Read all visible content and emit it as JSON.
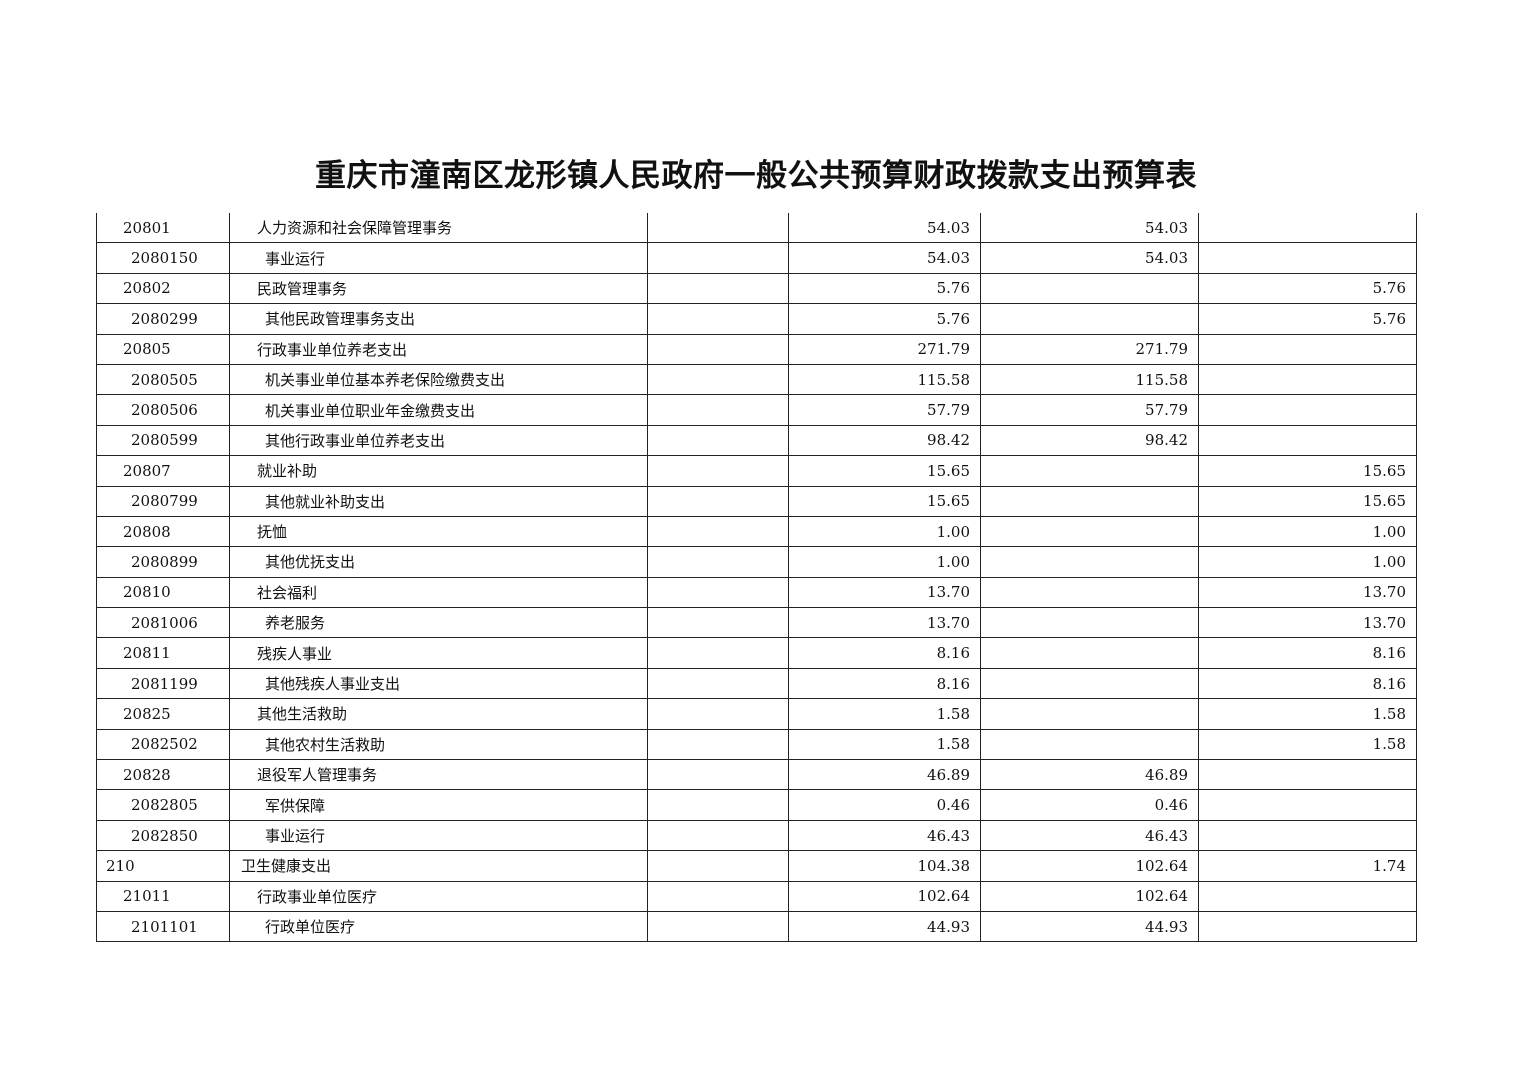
{
  "title": "重庆市潼南区龙形镇人民政府一般公共预算财政拨款支出预算表",
  "rows": [
    {
      "code": "20801",
      "name": "人力资源和社会保障管理事务",
      "level": 1,
      "c3": "",
      "total": "54.03",
      "basic": "54.03",
      "project": ""
    },
    {
      "code": "2080150",
      "name": "事业运行",
      "level": 2,
      "c3": "",
      "total": "54.03",
      "basic": "54.03",
      "project": ""
    },
    {
      "code": "20802",
      "name": "民政管理事务",
      "level": 1,
      "c3": "",
      "total": "5.76",
      "basic": "",
      "project": "5.76"
    },
    {
      "code": "2080299",
      "name": "其他民政管理事务支出",
      "level": 2,
      "c3": "",
      "total": "5.76",
      "basic": "",
      "project": "5.76"
    },
    {
      "code": "20805",
      "name": "行政事业单位养老支出",
      "level": 1,
      "c3": "",
      "total": "271.79",
      "basic": "271.79",
      "project": ""
    },
    {
      "code": "2080505",
      "name": "机关事业单位基本养老保险缴费支出",
      "level": 2,
      "c3": "",
      "total": "115.58",
      "basic": "115.58",
      "project": ""
    },
    {
      "code": "2080506",
      "name": "机关事业单位职业年金缴费支出",
      "level": 2,
      "c3": "",
      "total": "57.79",
      "basic": "57.79",
      "project": ""
    },
    {
      "code": "2080599",
      "name": "其他行政事业单位养老支出",
      "level": 2,
      "c3": "",
      "total": "98.42",
      "basic": "98.42",
      "project": ""
    },
    {
      "code": "20807",
      "name": "就业补助",
      "level": 1,
      "c3": "",
      "total": "15.65",
      "basic": "",
      "project": "15.65"
    },
    {
      "code": "2080799",
      "name": "其他就业补助支出",
      "level": 2,
      "c3": "",
      "total": "15.65",
      "basic": "",
      "project": "15.65"
    },
    {
      "code": "20808",
      "name": "抚恤",
      "level": 1,
      "c3": "",
      "total": "1.00",
      "basic": "",
      "project": "1.00"
    },
    {
      "code": "2080899",
      "name": "其他优抚支出",
      "level": 2,
      "c3": "",
      "total": "1.00",
      "basic": "",
      "project": "1.00"
    },
    {
      "code": "20810",
      "name": "社会福利",
      "level": 1,
      "c3": "",
      "total": "13.70",
      "basic": "",
      "project": "13.70"
    },
    {
      "code": "2081006",
      "name": "养老服务",
      "level": 2,
      "c3": "",
      "total": "13.70",
      "basic": "",
      "project": "13.70"
    },
    {
      "code": "20811",
      "name": "残疾人事业",
      "level": 1,
      "c3": "",
      "total": "8.16",
      "basic": "",
      "project": "8.16"
    },
    {
      "code": "2081199",
      "name": "其他残疾人事业支出",
      "level": 2,
      "c3": "",
      "total": "8.16",
      "basic": "",
      "project": "8.16"
    },
    {
      "code": "20825",
      "name": "其他生活救助",
      "level": 1,
      "c3": "",
      "total": "1.58",
      "basic": "",
      "project": "1.58"
    },
    {
      "code": "2082502",
      "name": "其他农村生活救助",
      "level": 2,
      "c3": "",
      "total": "1.58",
      "basic": "",
      "project": "1.58"
    },
    {
      "code": "20828",
      "name": "退役军人管理事务",
      "level": 1,
      "c3": "",
      "total": "46.89",
      "basic": "46.89",
      "project": ""
    },
    {
      "code": "2082805",
      "name": "军供保障",
      "level": 2,
      "c3": "",
      "total": "0.46",
      "basic": "0.46",
      "project": ""
    },
    {
      "code": "2082850",
      "name": "事业运行",
      "level": 2,
      "c3": "",
      "total": "46.43",
      "basic": "46.43",
      "project": ""
    },
    {
      "code": "210",
      "name": "卫生健康支出",
      "level": 0,
      "c3": "",
      "total": "104.38",
      "basic": "102.64",
      "project": "1.74"
    },
    {
      "code": "21011",
      "name": "行政事业单位医疗",
      "level": 1,
      "c3": "",
      "total": "102.64",
      "basic": "102.64",
      "project": ""
    },
    {
      "code": "2101101",
      "name": "行政单位医疗",
      "level": 2,
      "c3": "",
      "total": "44.93",
      "basic": "44.93",
      "project": ""
    }
  ]
}
